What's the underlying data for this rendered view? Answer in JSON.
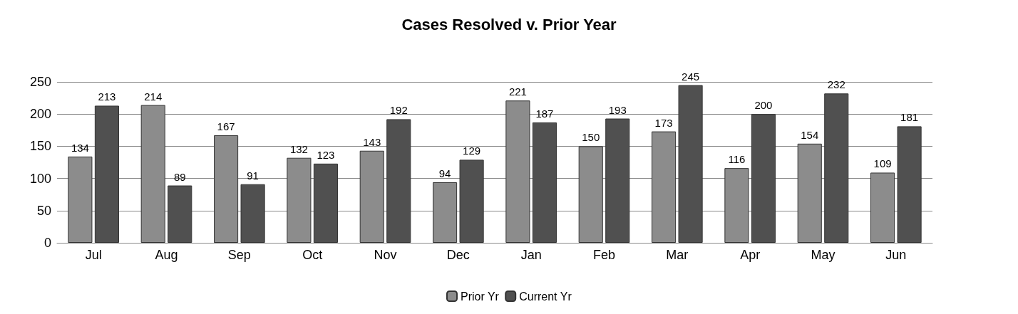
{
  "chart_data": {
    "type": "bar",
    "title": "Cases Resolved v. Prior Year",
    "categories": [
      "Jul",
      "Aug",
      "Sep",
      "Oct",
      "Nov",
      "Dec",
      "Jan",
      "Feb",
      "Mar",
      "Apr",
      "May",
      "Jun"
    ],
    "series": [
      {
        "name": "Prior Yr",
        "color": "#8c8c8c",
        "values": [
          134,
          214,
          167,
          132,
          143,
          94,
          221,
          150,
          173,
          116,
          154,
          109
        ]
      },
      {
        "name": "Current Yr",
        "color": "#505050",
        "values": [
          213,
          89,
          91,
          123,
          192,
          129,
          187,
          193,
          245,
          200,
          232,
          181
        ]
      }
    ],
    "ylim": [
      0,
      250
    ],
    "yticks": [
      0,
      50,
      100,
      150,
      200,
      250
    ],
    "grid": "y",
    "legend": "bottom",
    "data_labels": true
  }
}
